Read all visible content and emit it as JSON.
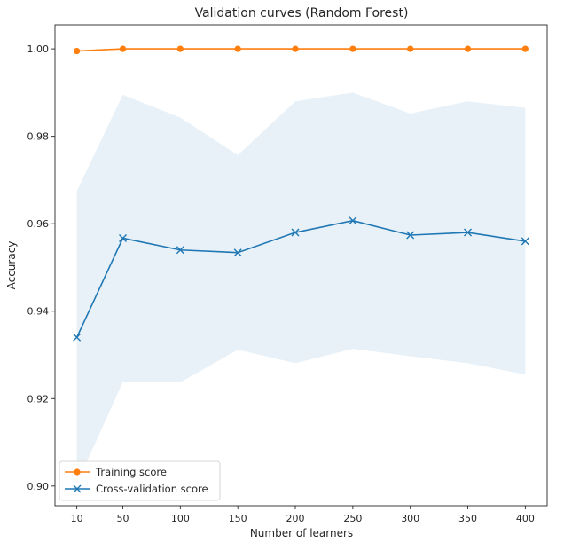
{
  "chart_data": {
    "type": "line",
    "title": "Validation curves (Random Forest)",
    "xlabel": "Number of learners",
    "ylabel": "Accuracy",
    "x": [
      10,
      50,
      100,
      150,
      200,
      250,
      300,
      350,
      400
    ],
    "x_ticks": [
      "10",
      "50",
      "100",
      "150",
      "200",
      "250",
      "300",
      "350",
      "400"
    ],
    "xlim": [
      -9,
      419
    ],
    "ylim": [
      0.8955,
      1.0055
    ],
    "y_ticks": [
      0.9,
      0.92,
      0.94,
      0.96,
      0.98,
      1.0
    ],
    "y_tick_labels": [
      "0.90",
      "0.92",
      "0.94",
      "0.96",
      "0.98",
      "1.00"
    ],
    "grid": false,
    "legend_position": "lower-left",
    "series": [
      {
        "name": "Training score",
        "color": "#ff7f0e",
        "marker": "circle",
        "values": [
          0.9995,
          1.0,
          1.0,
          1.0,
          1.0,
          1.0,
          1.0,
          1.0,
          1.0
        ]
      },
      {
        "name": "Cross-validation score",
        "color": "#1f77b4",
        "marker": "x",
        "values": [
          0.934,
          0.9567,
          0.954,
          0.9534,
          0.958,
          0.9607,
          0.9574,
          0.958,
          0.956
        ],
        "band_lower": [
          0.9005,
          0.9238,
          0.9237,
          0.9312,
          0.9281,
          0.9314,
          0.9297,
          0.9281,
          0.9255
        ],
        "band_upper": [
          0.9675,
          0.9895,
          0.9843,
          0.9757,
          0.988,
          0.99,
          0.9852,
          0.988,
          0.9865
        ],
        "band_color": "#1f77b4"
      }
    ]
  }
}
